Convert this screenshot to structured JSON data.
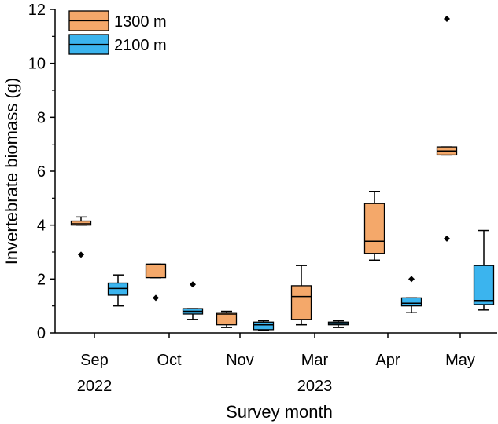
{
  "chart_data": {
    "type": "boxplot",
    "xlabel": "Survey month",
    "ylabel": "Invertebrate biomass (g)",
    "ylim": [
      0,
      12
    ],
    "yticks": [
      0,
      2,
      4,
      6,
      8,
      10,
      12
    ],
    "categories": [
      "Sep",
      "Oct",
      "Nov",
      "Mar",
      "Apr",
      "May"
    ],
    "year_labels": [
      {
        "text": "2022",
        "under": "Sep"
      },
      {
        "text": "2023",
        "under": "Mar"
      }
    ],
    "legend_position": "top-left",
    "grid": false,
    "series": [
      {
        "name": "1300 m",
        "color": "#f4a86a",
        "boxes": [
          {
            "month": "Sep",
            "whisker_low": 4.0,
            "q1": 4.0,
            "median": 4.05,
            "q3": 4.15,
            "whisker_high": 4.3,
            "outliers": [
              2.9
            ]
          },
          {
            "month": "Oct",
            "whisker_low": 2.05,
            "q1": 2.05,
            "median": 2.55,
            "q3": 2.55,
            "whisker_high": 2.55,
            "outliers": [
              1.3
            ]
          },
          {
            "month": "Nov",
            "whisker_low": 0.2,
            "q1": 0.3,
            "median": 0.7,
            "q3": 0.75,
            "whisker_high": 0.8,
            "outliers": []
          },
          {
            "month": "Mar",
            "whisker_low": 0.3,
            "q1": 0.5,
            "median": 1.35,
            "q3": 1.75,
            "whisker_high": 2.5,
            "outliers": []
          },
          {
            "month": "Apr",
            "whisker_low": 2.7,
            "q1": 2.95,
            "median": 3.4,
            "q3": 4.8,
            "whisker_high": 5.25,
            "outliers": []
          },
          {
            "month": "May",
            "whisker_low": 6.6,
            "q1": 6.6,
            "median": 6.75,
            "q3": 6.9,
            "whisker_high": 6.9,
            "outliers": [
              11.65,
              3.5
            ]
          }
        ]
      },
      {
        "name": "2100 m",
        "color": "#3bb4ee",
        "boxes": [
          {
            "month": "Sep",
            "whisker_low": 1.0,
            "q1": 1.4,
            "median": 1.65,
            "q3": 1.85,
            "whisker_high": 2.15,
            "outliers": []
          },
          {
            "month": "Oct",
            "whisker_low": 0.5,
            "q1": 0.7,
            "median": 0.8,
            "q3": 0.9,
            "whisker_high": 0.9,
            "outliers": [
              1.8
            ]
          },
          {
            "month": "Nov",
            "whisker_low": 0.1,
            "q1": 0.12,
            "median": 0.3,
            "q3": 0.4,
            "whisker_high": 0.45,
            "outliers": []
          },
          {
            "month": "Mar",
            "whisker_low": 0.2,
            "q1": 0.3,
            "median": 0.35,
            "q3": 0.4,
            "whisker_high": 0.45,
            "outliers": []
          },
          {
            "month": "Apr",
            "whisker_low": 0.75,
            "q1": 1.0,
            "median": 1.1,
            "q3": 1.3,
            "whisker_high": 1.3,
            "outliers": [
              2.0
            ]
          },
          {
            "month": "May",
            "whisker_low": 0.85,
            "q1": 1.05,
            "median": 1.2,
            "q3": 2.5,
            "whisker_high": 3.8,
            "outliers": []
          }
        ]
      }
    ]
  }
}
